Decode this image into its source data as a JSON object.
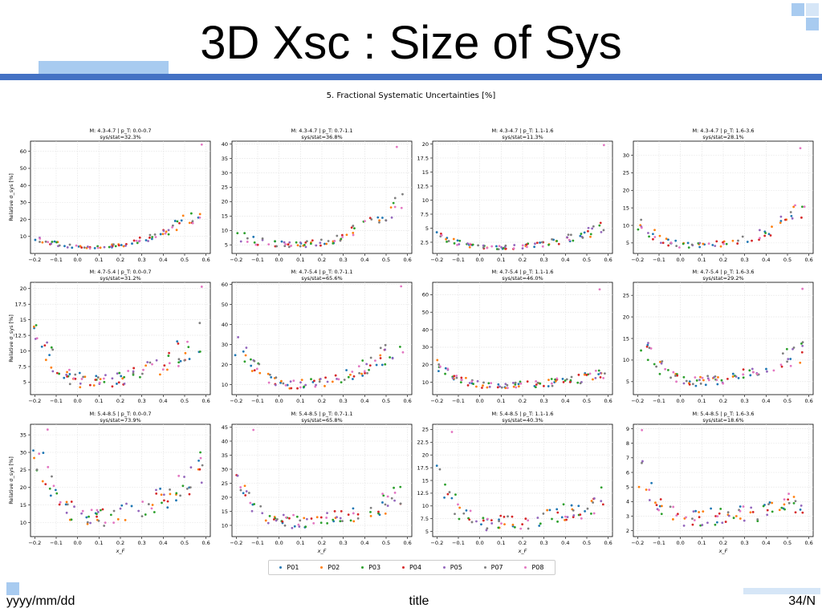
{
  "slide": {
    "title": "3D Xsc : Size of Sys",
    "footer_date": "yyyy/mm/dd",
    "footer_title": "title",
    "footer_page": "34/N"
  },
  "figure_title": "5. Fractional Systematic Uncertainties [%]",
  "colors": {
    "accent_blue": "#4472c4",
    "accent_light": "#a8cbf0",
    "accent_pale": "#d6e6f7"
  },
  "chart_data": {
    "type": "scatter",
    "legend": {
      "placement": "bottom-center",
      "entries": [
        {
          "name": "P01",
          "color": "#1f77b4"
        },
        {
          "name": "P02",
          "color": "#ff7f0e"
        },
        {
          "name": "P03",
          "color": "#2ca02c"
        },
        {
          "name": "P04",
          "color": "#d62728"
        },
        {
          "name": "P05",
          "color": "#9467bd"
        },
        {
          "name": "P07",
          "color": "#7f7f7f"
        },
        {
          "name": "P08",
          "color": "#e377c2"
        }
      ]
    },
    "xlabel": "x_F",
    "ylabel": "Relative σ_sys [%]",
    "xticks": [
      "−0.2",
      "−0.1",
      "0.0",
      "0.1",
      "0.2",
      "0.3",
      "0.4",
      "0.5",
      "0.6"
    ],
    "xlim": [
      -0.22,
      0.62
    ],
    "grid": true,
    "panels": [
      {
        "title1": "M: 4.3-4.7 | p_T: 0.0-0.7",
        "title2": "sys/stat=32.3%",
        "ylim": [
          0,
          66
        ],
        "yticks": [
          10,
          20,
          30,
          40,
          50,
          60
        ],
        "base": 3.5,
        "u_left": 9,
        "u_right": 25,
        "peak": 64,
        "peak_x": 0.58,
        "hl": true,
        "yl": true
      },
      {
        "title1": "M: 4.3-4.7 | p_T: 0.7-1.1",
        "title2": "sys/stat=36.8%",
        "ylim": [
          2,
          41
        ],
        "yticks": [
          5,
          10,
          15,
          20,
          25,
          30,
          35,
          40
        ],
        "base": 5,
        "u_left": 8,
        "u_right": 20,
        "peak": 39,
        "peak_x": 0.55,
        "hl": false,
        "yl": false
      },
      {
        "title1": "M: 4.3-4.7 | p_T: 1.1-1.6",
        "title2": "sys/stat=11.3%",
        "ylim": [
          0.5,
          20.5
        ],
        "yticks": [
          2.5,
          5.0,
          7.5,
          10.0,
          12.5,
          15.0,
          17.5,
          20.0
        ],
        "base": 1.5,
        "u_left": 3.5,
        "u_right": 5,
        "peak": 19.8,
        "peak_x": 0.58,
        "hl": false,
        "yl": false
      },
      {
        "title1": "M: 4.3-4.7 | p_T: 1.6-3.6",
        "title2": "sys/stat=28.1%",
        "ylim": [
          2,
          34
        ],
        "yticks": [
          5,
          10,
          15,
          20,
          25,
          30
        ],
        "base": 4,
        "u_left": 10,
        "u_right": 14,
        "peak": 32,
        "peak_x": 0.56,
        "hl": false,
        "yl": false
      },
      {
        "title1": "M: 4.7-5.4 | p_T: 0.0-0.7",
        "title2": "sys/stat=31.2%",
        "ylim": [
          3,
          21
        ],
        "yticks": [
          5.0,
          7.5,
          10.0,
          12.5,
          15.0,
          17.5,
          20.0
        ],
        "base": 5,
        "u_left": 12,
        "u_right": 12,
        "peak": 20.3,
        "peak_x": 0.58,
        "hl": true,
        "yl": true
      },
      {
        "title1": "M: 4.7-5.4 | p_T: 0.7-1.1",
        "title2": "sys/stat=65.6%",
        "ylim": [
          5,
          61
        ],
        "yticks": [
          10,
          20,
          30,
          40,
          50,
          60
        ],
        "base": 10,
        "u_left": 28,
        "u_right": 30,
        "peak": 59,
        "peak_x": 0.57,
        "hl": false,
        "yl": false
      },
      {
        "title1": "M: 4.7-5.4 | p_T: 1.1-1.6",
        "title2": "sys/stat=46.0%",
        "ylim": [
          3,
          67
        ],
        "yticks": [
          10,
          20,
          30,
          40,
          50,
          60
        ],
        "base": 8,
        "u_left": 18,
        "u_right": 14,
        "peak": 63,
        "peak_x": 0.56,
        "hl": false,
        "yl": false
      },
      {
        "title1": "M: 4.7-5.4 | p_T: 1.6-3.6",
        "title2": "sys/stat=29.2%",
        "ylim": [
          2,
          28
        ],
        "yticks": [
          5,
          10,
          15,
          20,
          25
        ],
        "base": 5,
        "u_left": 14,
        "u_right": 12,
        "peak": 26.5,
        "peak_x": 0.57,
        "hl": false,
        "yl": false
      },
      {
        "title1": "M: 5.4-8.5 | p_T: 0.0-0.7",
        "title2": "sys/stat=73.9%",
        "ylim": [
          6,
          38
        ],
        "yticks": [
          10,
          15,
          20,
          25,
          30,
          35
        ],
        "base": 11,
        "u_left": 30,
        "u_right": 25,
        "peak": 36.5,
        "peak_x": -0.14,
        "hl": true,
        "yl": true
      },
      {
        "title1": "M: 5.4-8.5 | p_T: 0.7-1.1",
        "title2": "sys/stat=65.8%",
        "ylim": [
          6,
          46
        ],
        "yticks": [
          10,
          15,
          20,
          25,
          30,
          35,
          40,
          45
        ],
        "base": 11,
        "u_left": 22,
        "u_right": 20,
        "peak": 44,
        "peak_x": -0.12,
        "hl": false,
        "yl": false
      },
      {
        "title1": "M: 5.4-8.5 | p_T: 1.1-1.6",
        "title2": "sys/stat=40.3%",
        "ylim": [
          4,
          26
        ],
        "yticks": [
          5.0,
          7.5,
          10.0,
          12.5,
          15.0,
          17.5,
          20.0,
          22.5,
          25.0
        ],
        "base": 6.5,
        "u_left": 14,
        "u_right": 11,
        "peak": 24.5,
        "peak_x": -0.13,
        "hl": false,
        "yl": false
      },
      {
        "title1": "M: 5.4-8.5 | p_T: 1.6-3.6",
        "title2": "sys/stat=18.6%",
        "ylim": [
          1.6,
          9.3
        ],
        "yticks": [
          2,
          3,
          4,
          5,
          6,
          7,
          8,
          9
        ],
        "base": 2.8,
        "u_left": 6,
        "u_right": 4,
        "peak": 8.9,
        "peak_x": -0.18,
        "hl": false,
        "yl": false
      }
    ]
  }
}
